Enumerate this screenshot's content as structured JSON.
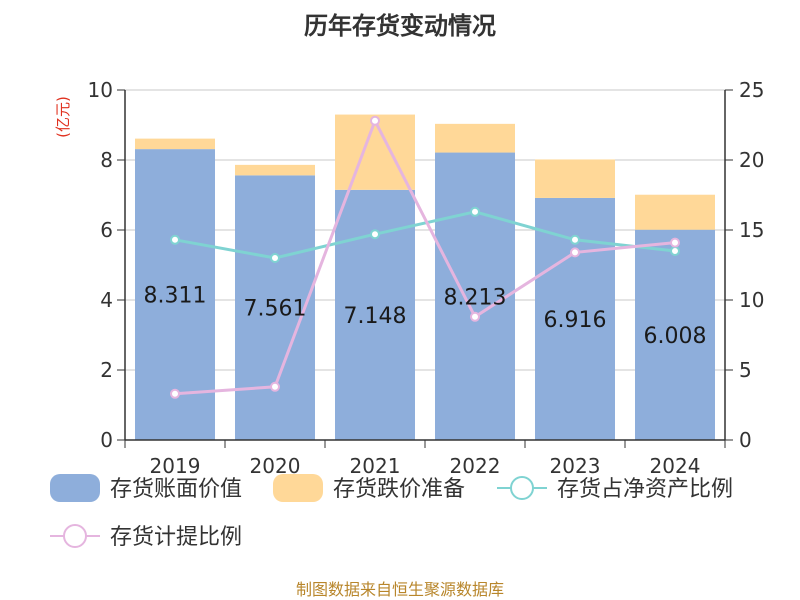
{
  "chart_data": {
    "type": "bar",
    "title": "历年存货变动情况",
    "categories": [
      "2019",
      "2020",
      "2021",
      "2022",
      "2023",
      "2024"
    ],
    "left_axis": {
      "unit": "(亿元)",
      "ylim": [
        0,
        10
      ],
      "ticks": [
        0,
        2,
        4,
        6,
        8,
        10
      ]
    },
    "right_axis": {
      "ylim": [
        0,
        25
      ],
      "ticks": [
        0,
        5,
        10,
        15,
        20,
        25
      ]
    },
    "series": [
      {
        "name": "存货账面价值",
        "kind": "bar",
        "axis": "left",
        "color": "#8eaedb",
        "values": [
          8.311,
          7.561,
          7.148,
          8.213,
          6.916,
          6.008
        ],
        "labels": [
          "8.311",
          "7.561",
          "7.148",
          "8.213",
          "6.916",
          "6.008"
        ]
      },
      {
        "name": "存货跌价准备",
        "kind": "bar-stack",
        "axis": "left",
        "color": "#ffd898",
        "values": [
          0.3,
          0.3,
          2.15,
          0.82,
          1.1,
          1.0
        ]
      },
      {
        "name": "存货占净资产比例",
        "kind": "line",
        "axis": "right",
        "color": "#7fd3d2",
        "values": [
          14.3,
          13.0,
          14.7,
          16.3,
          14.3,
          13.5
        ]
      },
      {
        "name": "存货计提比例",
        "kind": "line",
        "axis": "right",
        "color": "#e5b5df",
        "values": [
          3.3,
          3.8,
          22.8,
          8.8,
          13.4,
          14.1
        ]
      }
    ],
    "grid": true,
    "legend": "bottom",
    "source": "制图数据来自恒生聚源数据库"
  }
}
